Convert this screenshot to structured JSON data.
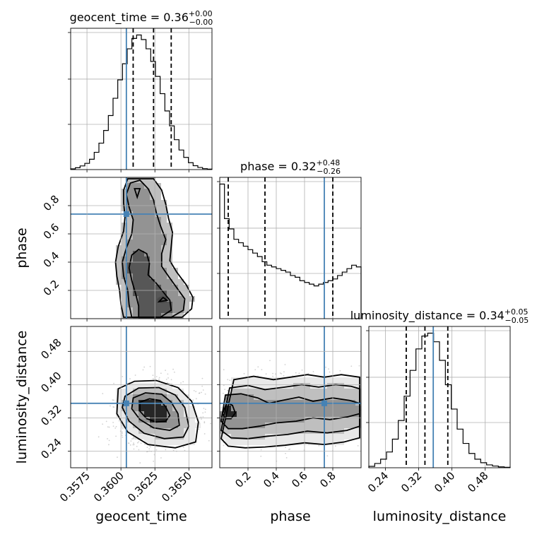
{
  "chart_data": {
    "type": "corner",
    "parameters": [
      {
        "name": "geocent_time",
        "xlabel": "geocent_time",
        "ylabel": "",
        "range": [
          0.3563,
          0.3667
        ],
        "ticks": [
          0.3575,
          0.36,
          0.3625,
          0.365
        ],
        "tick_labels": [
          "0.3575",
          "0.3600",
          "0.3625",
          "0.3650"
        ],
        "title_value": "0.36",
        "title_plus": "+0.00",
        "title_minus": "−0.00",
        "quantiles": [
          0.3609,
          0.3624,
          0.3637
        ],
        "truth": 0.3604,
        "hist": [
          0.3,
          0.8,
          1.6,
          2.7,
          4.5,
          7.5,
          11.5,
          17,
          23.5,
          31,
          39,
          46,
          52.5,
          57,
          58.5,
          56.5,
          52.5,
          47,
          40.5,
          33,
          25.5,
          19,
          13,
          8.5,
          5.3,
          3,
          1.7,
          0.9,
          0.4,
          0.2
        ]
      },
      {
        "name": "phase",
        "xlabel": "phase",
        "ylabel": "phase",
        "range": [
          0.0,
          1.0
        ],
        "ticks": [
          0.2,
          0.4,
          0.6,
          0.8
        ],
        "tick_labels": [
          "0.2",
          "0.4",
          "0.6",
          "0.8"
        ],
        "title_value": "0.32",
        "title_plus": "+0.48",
        "title_minus": "−0.26",
        "quantiles": [
          0.06,
          0.32,
          0.8
        ],
        "truth": 0.74,
        "hist": [
          78,
          58,
          52,
          46,
          44,
          42,
          40,
          38,
          36,
          33,
          31,
          30,
          29,
          28,
          27,
          25,
          24,
          22,
          21,
          20,
          19,
          20,
          21,
          22,
          23,
          25,
          27,
          29,
          31,
          30
        ]
      },
      {
        "name": "luminosity_distance",
        "xlabel": "luminosity_distance",
        "ylabel": "luminosity_distance",
        "range": [
          0.2,
          0.54
        ],
        "ticks": [
          0.24,
          0.32,
          0.4,
          0.48
        ],
        "tick_labels": [
          "0.24",
          "0.32",
          "0.40",
          "0.48"
        ],
        "title_value": "0.34",
        "title_plus": "+0.05",
        "title_minus": "−0.05",
        "quantiles": [
          0.29,
          0.335,
          0.39
        ],
        "truth": 0.355,
        "hist": [
          1,
          3,
          6,
          11,
          20,
          33,
          50,
          68,
          83,
          92,
          94,
          88,
          75,
          58,
          41,
          27,
          17,
          10,
          6,
          3.5,
          2,
          1.2,
          0.6,
          0.3
        ]
      }
    ],
    "truths": [
      0.3604,
      0.74,
      0.355
    ],
    "pairs": [
      {
        "x": "geocent_time",
        "y": "phase",
        "contours": [
          [
            [
              0.3613,
              0.01
            ],
            [
              0.3629,
              0.01
            ],
            [
              0.3637,
              0.06
            ],
            [
              0.3636,
              0.13
            ],
            [
              0.3631,
              0.19
            ],
            [
              0.3626,
              0.25
            ],
            [
              0.362,
              0.31
            ],
            [
              0.3621,
              0.39
            ],
            [
              0.3619,
              0.46
            ],
            [
              0.3613,
              0.49
            ],
            [
              0.3608,
              0.45
            ],
            [
              0.3606,
              0.36
            ],
            [
              0.3608,
              0.27
            ],
            [
              0.3611,
              0.17
            ],
            [
              0.3613,
              0.09
            ]
          ],
          [
            [
              0.3608,
              0.01
            ],
            [
              0.3637,
              0.01
            ],
            [
              0.3646,
              0.06
            ],
            [
              0.3647,
              0.14
            ],
            [
              0.3641,
              0.22
            ],
            [
              0.3635,
              0.3
            ],
            [
              0.363,
              0.37
            ],
            [
              0.363,
              0.46
            ],
            [
              0.3633,
              0.56
            ],
            [
              0.3629,
              0.66
            ],
            [
              0.3626,
              0.75
            ],
            [
              0.3624,
              0.84
            ],
            [
              0.362,
              0.92
            ],
            [
              0.3614,
              0.98
            ],
            [
              0.3607,
              0.96
            ],
            [
              0.3604,
              0.88
            ],
            [
              0.3606,
              0.79
            ],
            [
              0.3609,
              0.7
            ],
            [
              0.3608,
              0.6
            ],
            [
              0.3604,
              0.5
            ],
            [
              0.3601,
              0.4
            ],
            [
              0.3602,
              0.3
            ],
            [
              0.3605,
              0.2
            ],
            [
              0.3606,
              0.1
            ]
          ],
          [
            [
              0.3602,
              0.01
            ],
            [
              0.3645,
              0.01
            ],
            [
              0.3652,
              0.07
            ],
            [
              0.3653,
              0.15
            ],
            [
              0.3648,
              0.24
            ],
            [
              0.3641,
              0.33
            ],
            [
              0.3636,
              0.41
            ],
            [
              0.3637,
              0.51
            ],
            [
              0.3638,
              0.61
            ],
            [
              0.3635,
              0.71
            ],
            [
              0.3633,
              0.81
            ],
            [
              0.363,
              0.91
            ],
            [
              0.3624,
              0.99
            ],
            [
              0.3605,
              0.99
            ],
            [
              0.3602,
              0.91
            ],
            [
              0.3602,
              0.82
            ],
            [
              0.3603,
              0.72
            ],
            [
              0.3602,
              0.62
            ],
            [
              0.3598,
              0.51
            ],
            [
              0.3596,
              0.4
            ],
            [
              0.3597,
              0.3
            ],
            [
              0.3599,
              0.2
            ],
            [
              0.36,
              0.1
            ]
          ],
          [
            [
              0.361,
              0.92
            ],
            [
              0.3612,
              0.86
            ],
            [
              0.3614,
              0.92
            ]
          ],
          [
            [
              0.3628,
              0.12
            ],
            [
              0.3634,
              0.13
            ],
            [
              0.3631,
              0.15
            ]
          ]
        ]
      },
      {
        "x": "geocent_time",
        "y": "luminosity_distance",
        "contours": [
          [
            [
              0.3614,
              0.358
            ],
            [
              0.3621,
              0.366
            ],
            [
              0.3629,
              0.362
            ],
            [
              0.3633,
              0.346
            ],
            [
              0.3636,
              0.326
            ],
            [
              0.3633,
              0.312
            ],
            [
              0.3626,
              0.31
            ],
            [
              0.3619,
              0.318
            ],
            [
              0.3614,
              0.336
            ]
          ],
          [
            [
              0.3609,
              0.368
            ],
            [
              0.3618,
              0.38
            ],
            [
              0.363,
              0.377
            ],
            [
              0.3637,
              0.358
            ],
            [
              0.3642,
              0.33
            ],
            [
              0.3643,
              0.302
            ],
            [
              0.3636,
              0.29
            ],
            [
              0.3624,
              0.296
            ],
            [
              0.3614,
              0.316
            ],
            [
              0.3608,
              0.342
            ]
          ],
          [
            [
              0.3603,
              0.372
            ],
            [
              0.3613,
              0.392
            ],
            [
              0.3628,
              0.393
            ],
            [
              0.364,
              0.375
            ],
            [
              0.3647,
              0.345
            ],
            [
              0.365,
              0.3
            ],
            [
              0.3646,
              0.274
            ],
            [
              0.3632,
              0.27
            ],
            [
              0.3617,
              0.283
            ],
            [
              0.3606,
              0.312
            ],
            [
              0.3601,
              0.345
            ]
          ],
          [
            [
              0.3598,
              0.39
            ],
            [
              0.361,
              0.408
            ],
            [
              0.3626,
              0.41
            ],
            [
              0.3642,
              0.393
            ],
            [
              0.3652,
              0.36
            ],
            [
              0.3657,
              0.31
            ],
            [
              0.3655,
              0.262
            ],
            [
              0.364,
              0.248
            ],
            [
              0.362,
              0.256
            ],
            [
              0.3605,
              0.286
            ],
            [
              0.3597,
              0.33
            ]
          ]
        ]
      },
      {
        "x": "phase",
        "y": "luminosity_distance",
        "contours": [
          [
            [
              0.02,
              0.33
            ],
            [
              0.05,
              0.358
            ],
            [
              0.09,
              0.35
            ],
            [
              0.11,
              0.332
            ],
            [
              0.08,
              0.318
            ],
            [
              0.04,
              0.318
            ]
          ],
          [
            [
              0.01,
              0.312
            ],
            [
              0.04,
              0.375
            ],
            [
              0.15,
              0.378
            ],
            [
              0.27,
              0.368
            ],
            [
              0.35,
              0.355
            ],
            [
              0.44,
              0.362
            ],
            [
              0.56,
              0.37
            ],
            [
              0.66,
              0.36
            ],
            [
              0.8,
              0.368
            ],
            [
              0.92,
              0.362
            ],
            [
              0.99,
              0.355
            ],
            [
              0.99,
              0.33
            ],
            [
              0.9,
              0.322
            ],
            [
              0.78,
              0.316
            ],
            [
              0.66,
              0.32
            ],
            [
              0.54,
              0.312
            ],
            [
              0.4,
              0.308
            ],
            [
              0.28,
              0.3
            ],
            [
              0.16,
              0.294
            ],
            [
              0.06,
              0.294
            ]
          ],
          [
            [
              0.01,
              0.29
            ],
            [
              0.07,
              0.392
            ],
            [
              0.2,
              0.398
            ],
            [
              0.32,
              0.388
            ],
            [
              0.46,
              0.394
            ],
            [
              0.58,
              0.4
            ],
            [
              0.7,
              0.394
            ],
            [
              0.82,
              0.4
            ],
            [
              0.93,
              0.396
            ],
            [
              0.99,
              0.39
            ],
            [
              0.99,
              0.3
            ],
            [
              0.9,
              0.29
            ],
            [
              0.76,
              0.284
            ],
            [
              0.62,
              0.288
            ],
            [
              0.48,
              0.28
            ],
            [
              0.34,
              0.276
            ],
            [
              0.2,
              0.27
            ],
            [
              0.08,
              0.272
            ]
          ],
          [
            [
              0.01,
              0.27
            ],
            [
              0.1,
              0.412
            ],
            [
              0.24,
              0.42
            ],
            [
              0.38,
              0.412
            ],
            [
              0.5,
              0.418
            ],
            [
              0.62,
              0.424
            ],
            [
              0.74,
              0.418
            ],
            [
              0.86,
              0.424
            ],
            [
              0.99,
              0.418
            ],
            [
              0.99,
              0.272
            ],
            [
              0.88,
              0.262
            ],
            [
              0.74,
              0.256
            ],
            [
              0.6,
              0.26
            ],
            [
              0.46,
              0.254
            ],
            [
              0.32,
              0.25
            ],
            [
              0.18,
              0.248
            ],
            [
              0.06,
              0.252
            ]
          ]
        ]
      }
    ],
    "grid": true,
    "legend": "none"
  }
}
